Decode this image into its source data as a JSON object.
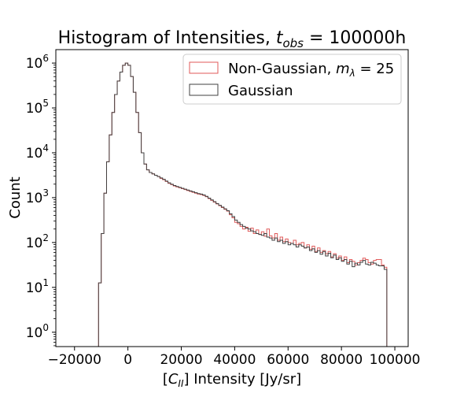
{
  "chart_data": {
    "type": "histogram",
    "title": {
      "prefix": "Histogram of Intensities, ",
      "var": "t",
      "sub": "obs",
      "suffix": " = 100000h"
    },
    "xlabel": {
      "pre": "[",
      "var": "C",
      "sub": "II",
      "post": "] Intensity [Jy/sr]"
    },
    "ylabel": "Count",
    "xlim": [
      -27000,
      105000
    ],
    "ylim_log10": [
      -0.32,
      6.3
    ],
    "yscale": "log",
    "grid": false,
    "legend_position": "top-right",
    "x_ticks": [
      {
        "value": -20000,
        "label": "−20000"
      },
      {
        "value": 0,
        "label": "0"
      },
      {
        "value": 20000,
        "label": "20000"
      },
      {
        "value": 40000,
        "label": "40000"
      },
      {
        "value": 60000,
        "label": "60000"
      },
      {
        "value": 80000,
        "label": "80000"
      },
      {
        "value": 100000,
        "label": "100000"
      }
    ],
    "y_ticks": [
      {
        "exp": 0,
        "base": "10",
        "sup": "0"
      },
      {
        "exp": 1,
        "base": "10",
        "sup": "1"
      },
      {
        "exp": 2,
        "base": "10",
        "sup": "2"
      },
      {
        "exp": 3,
        "base": "10",
        "sup": "3"
      },
      {
        "exp": 4,
        "base": "10",
        "sup": "4"
      },
      {
        "exp": 5,
        "base": "10",
        "sup": "5"
      },
      {
        "exp": 6,
        "base": "10",
        "sup": "6"
      }
    ],
    "bin_edges_start": -12000,
    "bin_width": 1000,
    "series": [
      {
        "name": {
          "pre": "Non-Gaussian, ",
          "var": "m",
          "sub": "λ",
          "post": " = 25"
        },
        "color": "#e05a5a",
        "log10_counts": [
          -2.0,
          1.1,
          2.2,
          3.1,
          3.8,
          4.4,
          4.9,
          5.3,
          5.6,
          5.8,
          5.95,
          6.0,
          5.95,
          5.7,
          5.35,
          4.9,
          4.45,
          4.0,
          3.75,
          3.62,
          3.56,
          3.53,
          3.5,
          3.47,
          3.43,
          3.4,
          3.36,
          3.32,
          3.29,
          3.26,
          3.24,
          3.22,
          3.2,
          3.18,
          3.16,
          3.14,
          3.12,
          3.1,
          3.08,
          3.07,
          3.05,
          3.02,
          2.98,
          2.94,
          2.9,
          2.86,
          2.82,
          2.78,
          2.74,
          2.7,
          2.62,
          2.55,
          2.45,
          2.42,
          2.36,
          2.3,
          2.34,
          2.25,
          2.32,
          2.2,
          2.28,
          2.18,
          2.24,
          2.14,
          2.3,
          2.15,
          2.1,
          2.2,
          2.05,
          2.12,
          2.02,
          2.08,
          2.0,
          1.98,
          2.05,
          1.95,
          1.98,
          2.0,
          1.88,
          1.95,
          1.85,
          1.92,
          1.8,
          1.88,
          1.78,
          1.82,
          1.75,
          1.8,
          1.68,
          1.75,
          1.65,
          1.7,
          1.6,
          1.68,
          1.55,
          1.62,
          1.58,
          1.5,
          1.55,
          1.6,
          1.65,
          1.62,
          1.55,
          1.52,
          1.6,
          1.62,
          1.62,
          1.5,
          1.45
        ]
      },
      {
        "name": {
          "pre": "Gaussian",
          "var": "",
          "sub": "",
          "post": ""
        },
        "color": "#404040",
        "log10_counts": [
          -2.0,
          1.1,
          2.2,
          3.1,
          3.8,
          4.4,
          4.9,
          5.3,
          5.6,
          5.8,
          5.95,
          6.0,
          5.95,
          5.7,
          5.35,
          4.9,
          4.45,
          4.0,
          3.75,
          3.62,
          3.56,
          3.53,
          3.5,
          3.47,
          3.44,
          3.41,
          3.37,
          3.33,
          3.3,
          3.27,
          3.25,
          3.23,
          3.21,
          3.19,
          3.17,
          3.15,
          3.13,
          3.11,
          3.09,
          3.08,
          3.06,
          3.03,
          2.99,
          2.95,
          2.91,
          2.87,
          2.83,
          2.79,
          2.75,
          2.71,
          2.64,
          2.58,
          2.5,
          2.45,
          2.4,
          2.36,
          2.32,
          2.3,
          2.26,
          2.24,
          2.2,
          2.18,
          2.16,
          2.2,
          2.12,
          2.1,
          2.05,
          2.1,
          2.02,
          2.05,
          1.98,
          2.02,
          1.95,
          1.98,
          1.95,
          1.9,
          1.95,
          1.92,
          1.88,
          1.9,
          1.82,
          1.86,
          1.78,
          1.82,
          1.74,
          1.8,
          1.7,
          1.76,
          1.66,
          1.72,
          1.62,
          1.66,
          1.58,
          1.62,
          1.52,
          1.58,
          1.46,
          1.54,
          1.5,
          1.56,
          1.6,
          1.52,
          1.5,
          1.56,
          1.54,
          1.5,
          1.48,
          1.48,
          1.4
        ]
      }
    ]
  }
}
